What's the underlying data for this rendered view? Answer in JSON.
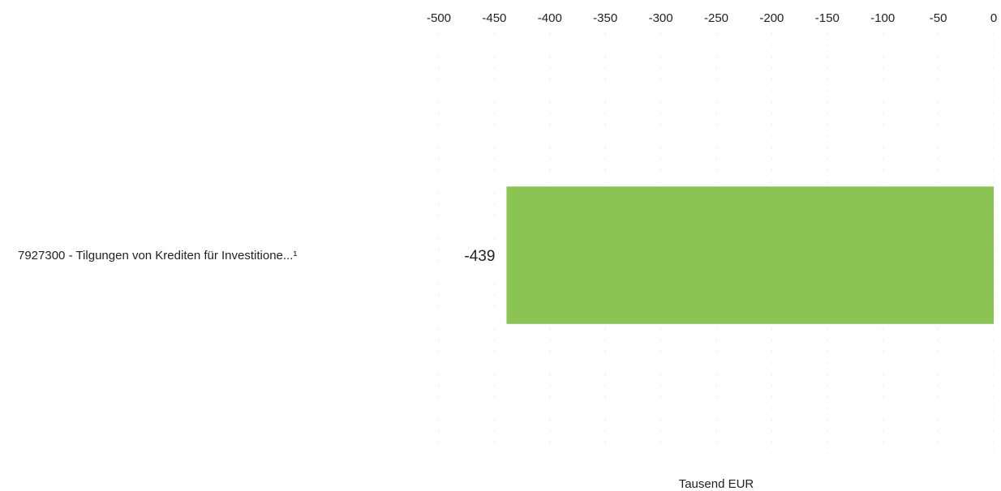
{
  "chart_data": {
    "type": "bar",
    "orientation": "horizontal",
    "categories": [
      "7927300 - Tilgungen von Krediten für Investitione...¹"
    ],
    "values": [
      -439
    ],
    "data_labels": [
      "-439"
    ],
    "title": "",
    "xlabel": "Tausend EUR",
    "ylabel": "",
    "xlim": [
      -500,
      0
    ],
    "xticks": [
      -500,
      -450,
      -400,
      -350,
      -300,
      -250,
      -200,
      -150,
      -100,
      -50,
      0
    ],
    "xtick_labels": [
      "-500",
      "-450",
      "-400",
      "-350",
      "-300",
      "-250",
      "-200",
      "-150",
      "-100",
      "-50",
      "0"
    ],
    "x_axis_position": "top",
    "grid": true,
    "bar_color": "#8cc453"
  }
}
